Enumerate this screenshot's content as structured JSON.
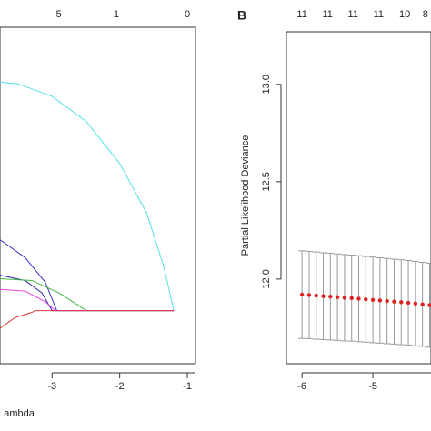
{
  "chart_data": [
    {
      "type": "line",
      "xlabel": "Lambda",
      "xlim": [
        -3.77,
        -0.88
      ],
      "ylim": [
        -0.3,
        1.6
      ],
      "xticks": [
        -3,
        -2,
        -1
      ],
      "top_ticks": [
        {
          "value": -2.9,
          "label": "5"
        },
        {
          "value": -2.05,
          "label": "1"
        },
        {
          "value": -1.0,
          "label": "0"
        }
      ],
      "series": [
        {
          "name": "cyan",
          "color": "#55e0e8",
          "x": [
            -3.77,
            -3.5,
            -3,
            -2.5,
            -2,
            -1.6,
            -1.35,
            -1.2
          ],
          "values": [
            1.29,
            1.28,
            1.21,
            1.07,
            0.83,
            0.55,
            0.25,
            0
          ]
        },
        {
          "name": "blue",
          "color": "#3838c8",
          "x": [
            -3.77,
            -3.4,
            -3.1,
            -2.93,
            -1.2
          ],
          "values": [
            0.4,
            0.3,
            0.16,
            0,
            0
          ]
        },
        {
          "name": "navy",
          "color": "#2828a0",
          "x": [
            -3.77,
            -3.4,
            -3.15,
            -3.0,
            -1.2
          ],
          "values": [
            0.2,
            0.17,
            0.1,
            0,
            0
          ]
        },
        {
          "name": "green",
          "color": "#40b840",
          "x": [
            -3.77,
            -3.3,
            -2.9,
            -2.49,
            -1.2
          ],
          "values": [
            0.18,
            0.17,
            0.1,
            0,
            0
          ]
        },
        {
          "name": "magenta",
          "color": "#e048e0",
          "x": [
            -3.77,
            -3.4,
            -3.1,
            -2.95,
            -1.2
          ],
          "values": [
            0.12,
            0.11,
            0.05,
            0,
            0
          ]
        },
        {
          "name": "red",
          "color": "#e03838",
          "x": [
            -3.77,
            -3.55,
            -3.3,
            -3.25,
            -1.2
          ],
          "values": [
            -0.1,
            -0.04,
            -0.01,
            0,
            0
          ]
        }
      ]
    },
    {
      "type": "errorbar",
      "panel": "B",
      "ylabel": "Partial Likelihood Deviance",
      "xlim": [
        -6.22,
        -4.18
      ],
      "ylim": [
        11.565,
        13.27
      ],
      "xticks": [
        -6,
        -5
      ],
      "yticks": [
        {
          "value": 12.0,
          "label": "12.0"
        },
        {
          "value": 12.5,
          "label": "12.5"
        },
        {
          "value": 13.0,
          "label": "13.0"
        }
      ],
      "top_ticks": [
        {
          "value": -6,
          "label": "11"
        },
        {
          "value": -5.64,
          "label": "11"
        },
        {
          "value": -5.28,
          "label": "11"
        },
        {
          "value": -4.92,
          "label": "11"
        },
        {
          "value": -4.55,
          "label": "10"
        },
        {
          "value": -4.26,
          "label": "8"
        }
      ],
      "color": "#dd2222",
      "x": [
        -6.0,
        -5.9,
        -5.8,
        -5.7,
        -5.6,
        -5.5,
        -5.4,
        -5.3,
        -5.2,
        -5.1,
        -5.0,
        -4.9,
        -4.8,
        -4.7,
        -4.6,
        -4.5,
        -4.4,
        -4.3,
        -4.2
      ],
      "values": [
        11.92,
        11.918,
        11.915,
        11.912,
        11.91,
        11.907,
        11.904,
        11.902,
        11.899,
        11.896,
        11.893,
        11.89,
        11.887,
        11.884,
        11.881,
        11.878,
        11.874,
        11.87,
        11.866
      ],
      "errors": [
        0.225,
        0.224,
        0.224,
        0.223,
        0.223,
        0.222,
        0.222,
        0.221,
        0.221,
        0.22,
        0.22,
        0.219,
        0.219,
        0.218,
        0.218,
        0.217,
        0.217,
        0.216,
        0.216
      ]
    }
  ]
}
